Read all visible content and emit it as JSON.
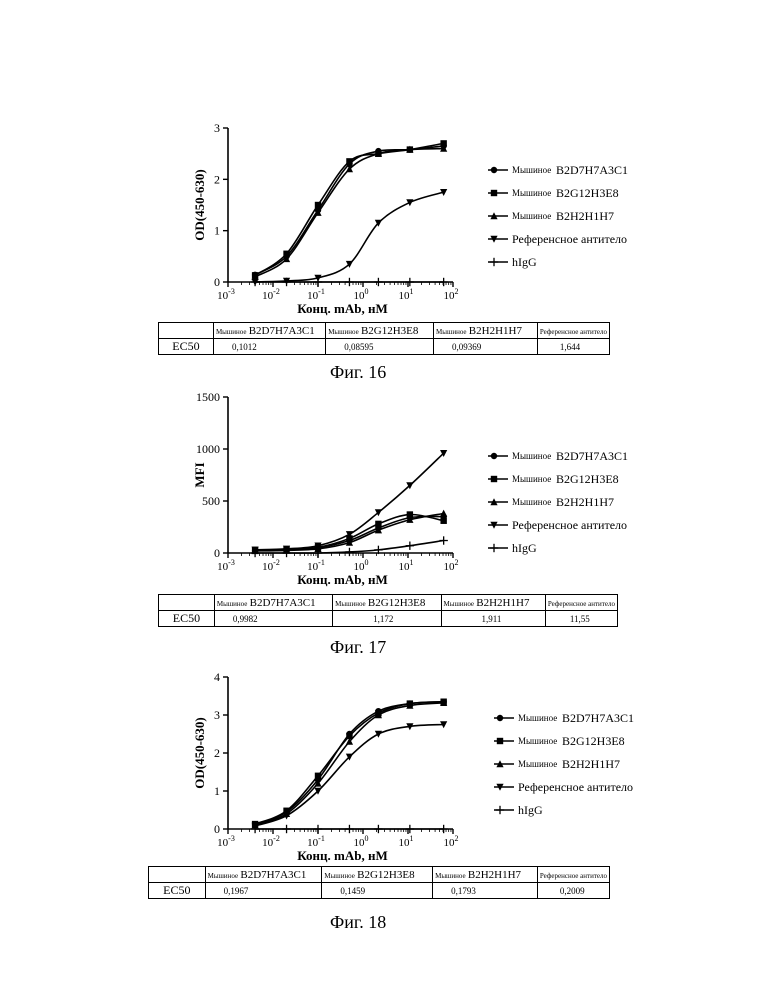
{
  "chart_data": [
    {
      "type": "line",
      "figure": "Фиг. 16",
      "xlabel": "Конц. mAb, нМ",
      "ylabel": "OD(450-630)",
      "xscale": "log",
      "xlim": [
        0.001,
        100
      ],
      "ylim": [
        0,
        3
      ],
      "yticks": [
        0,
        1,
        2,
        3
      ],
      "legend_position": "right",
      "series": [
        {
          "name": "B2D7H7A3C1",
          "prefix": "Мышиное",
          "marker": "circle",
          "x": [
            0.004,
            0.02,
            0.1,
            0.5,
            2.2,
            11,
            62
          ],
          "y": [
            0.14,
            0.5,
            1.4,
            2.3,
            2.55,
            2.58,
            2.65
          ]
        },
        {
          "name": "B2G12H3E8",
          "prefix": "Мышиное",
          "marker": "square",
          "x": [
            0.004,
            0.02,
            0.1,
            0.5,
            2.2,
            11,
            62
          ],
          "y": [
            0.13,
            0.55,
            1.5,
            2.35,
            2.5,
            2.58,
            2.7
          ]
        },
        {
          "name": "B2H2H1H7",
          "prefix": "Мышиное",
          "marker": "triangle-up",
          "x": [
            0.004,
            0.02,
            0.1,
            0.5,
            2.2,
            11,
            62
          ],
          "y": [
            0.1,
            0.45,
            1.35,
            2.2,
            2.5,
            2.58,
            2.6
          ]
        },
        {
          "name": "Референсное антитело",
          "prefix": "",
          "marker": "triangle-down",
          "x": [
            0.004,
            0.02,
            0.1,
            0.5,
            2.2,
            11,
            62
          ],
          "y": [
            0.0,
            0.02,
            0.08,
            0.35,
            1.15,
            1.55,
            1.75
          ]
        },
        {
          "name": "hIgG",
          "prefix": "",
          "marker": "plus",
          "x": [
            0.004,
            0.02,
            0.1,
            0.5,
            2.2,
            11,
            62
          ],
          "y": [
            0.0,
            0.0,
            0.0,
            0.0,
            0.0,
            0.0,
            0.0
          ]
        }
      ],
      "ec50_table": {
        "row_label": "EC50",
        "columns": [
          {
            "prefix": "Мышиное",
            "name": "B2D7H7A3C1",
            "value": "0,1012"
          },
          {
            "prefix": "Мышиное",
            "name": "B2G12H3E8",
            "value": "0,08595"
          },
          {
            "prefix": "Мышиное",
            "name": "B2H2H1H7",
            "value": "0,09369"
          },
          {
            "prefix": "",
            "name": "Референсное антитело",
            "value": "1,644"
          }
        ]
      }
    },
    {
      "type": "line",
      "figure": "Фиг. 17",
      "xlabel": "Конц. mAb, нМ",
      "ylabel": "MFI",
      "xscale": "log",
      "xlim": [
        0.001,
        100
      ],
      "ylim": [
        0,
        1500
      ],
      "yticks": [
        0,
        500,
        1000,
        1500
      ],
      "legend_position": "right",
      "series": [
        {
          "name": "B2D7H7A3C1",
          "prefix": "Мышиное",
          "marker": "circle",
          "x": [
            0.004,
            0.02,
            0.1,
            0.5,
            2.2,
            11,
            62
          ],
          "y": [
            25,
            30,
            50,
            120,
            240,
            340,
            350
          ]
        },
        {
          "name": "B2G12H3E8",
          "prefix": "Мышиное",
          "marker": "square",
          "x": [
            0.004,
            0.02,
            0.1,
            0.5,
            2.2,
            11,
            62
          ],
          "y": [
            30,
            35,
            55,
            140,
            280,
            370,
            310
          ]
        },
        {
          "name": "B2H2H1H7",
          "prefix": "Мышиное",
          "marker": "triangle-up",
          "x": [
            0.004,
            0.02,
            0.1,
            0.5,
            2.2,
            11,
            62
          ],
          "y": [
            20,
            25,
            40,
            100,
            220,
            320,
            380
          ]
        },
        {
          "name": "Референсное антитело",
          "prefix": "",
          "marker": "triangle-down",
          "x": [
            0.004,
            0.02,
            0.1,
            0.5,
            2.2,
            11,
            62
          ],
          "y": [
            30,
            40,
            70,
            180,
            390,
            650,
            960
          ]
        },
        {
          "name": "hIgG",
          "prefix": "",
          "marker": "plus",
          "x": [
            0.004,
            0.02,
            0.1,
            0.5,
            2.2,
            11,
            62
          ],
          "y": [
            0,
            0,
            0,
            10,
            30,
            70,
            120
          ]
        }
      ],
      "ec50_table": {
        "row_label": "EC50",
        "columns": [
          {
            "prefix": "Мышиное",
            "name": "B2D7H7A3C1",
            "value": "0,9982"
          },
          {
            "prefix": "Мышиное",
            "name": "B2G12H3E8",
            "value": "1,172"
          },
          {
            "prefix": "Мышиное",
            "name": "B2H2H1H7",
            "value": "1,911"
          },
          {
            "prefix": "",
            "name": "Референсное антитело",
            "value": "11,55"
          }
        ]
      }
    },
    {
      "type": "line",
      "figure": "Фиг. 18",
      "xlabel": "Конц. mAb, нМ",
      "ylabel": "OD(450-630)",
      "xscale": "log",
      "xlim": [
        0.001,
        100
      ],
      "ylim": [
        0,
        4
      ],
      "yticks": [
        0,
        1,
        2,
        3,
        4
      ],
      "legend_position": "right",
      "series": [
        {
          "name": "B2D7H7A3C1",
          "prefix": "Мышиное",
          "marker": "circle",
          "x": [
            0.004,
            0.02,
            0.1,
            0.5,
            2.2,
            11,
            62
          ],
          "y": [
            0.12,
            0.45,
            1.3,
            2.5,
            3.1,
            3.3,
            3.35
          ]
        },
        {
          "name": "B2G12H3E8",
          "prefix": "Мышиное",
          "marker": "square",
          "x": [
            0.004,
            0.02,
            0.1,
            0.5,
            2.2,
            11,
            62
          ],
          "y": [
            0.13,
            0.48,
            1.4,
            2.45,
            3.05,
            3.3,
            3.35
          ]
        },
        {
          "name": "B2H2H1H7",
          "prefix": "Мышиное",
          "marker": "triangle-up",
          "x": [
            0.004,
            0.02,
            0.1,
            0.5,
            2.2,
            11,
            62
          ],
          "y": [
            0.1,
            0.4,
            1.2,
            2.3,
            3.0,
            3.25,
            3.32
          ]
        },
        {
          "name": "Референсное антитело",
          "prefix": "",
          "marker": "triangle-down",
          "x": [
            0.004,
            0.02,
            0.1,
            0.5,
            2.2,
            11,
            62
          ],
          "y": [
            0.08,
            0.35,
            1.0,
            1.9,
            2.5,
            2.7,
            2.75
          ]
        },
        {
          "name": "hIgG",
          "prefix": "",
          "marker": "plus",
          "x": [
            0.004,
            0.02,
            0.1,
            0.5,
            2.2,
            11,
            62
          ],
          "y": [
            0.0,
            0.0,
            0.0,
            0.0,
            0.0,
            0.0,
            0.0
          ]
        }
      ],
      "ec50_table": {
        "row_label": "EC50",
        "columns": [
          {
            "prefix": "Мышиное",
            "name": "B2D7H7A3C1",
            "value": "0,1967"
          },
          {
            "prefix": "Мышиное",
            "name": "B2G12H3E8",
            "value": "0,1459"
          },
          {
            "prefix": "Мышиное",
            "name": "B2H2H1H7",
            "value": "0,1793"
          },
          {
            "prefix": "",
            "name": "Референсное антитело",
            "value": "0,2009"
          }
        ]
      }
    }
  ]
}
